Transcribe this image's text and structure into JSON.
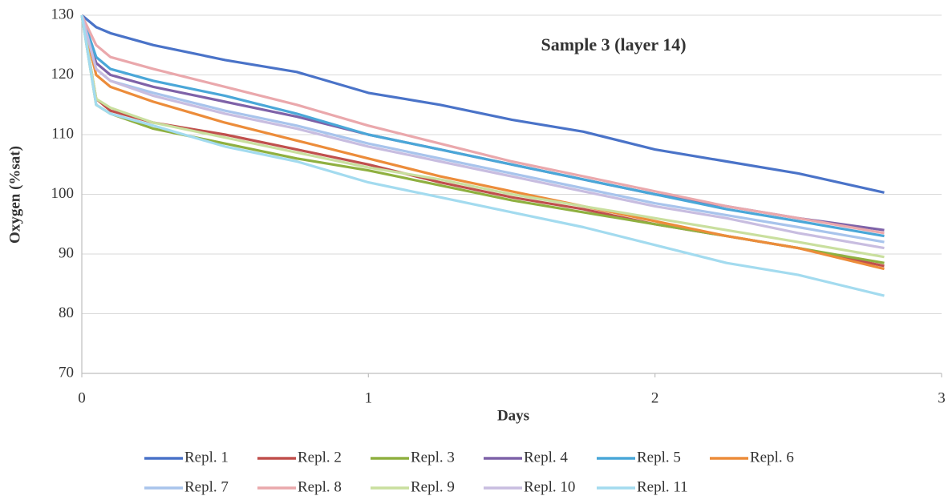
{
  "chart_data": {
    "type": "line",
    "title": "Sample 3 (layer 14)",
    "x_label": "Days",
    "y_label": "Oxygen (%sat)",
    "x": [
      0,
      0.05,
      0.1,
      0.25,
      0.5,
      0.75,
      1,
      1.25,
      1.5,
      1.75,
      2,
      2.25,
      2.5,
      2.8
    ],
    "xlim": [
      0,
      3
    ],
    "xticks": [
      0,
      1,
      2,
      3
    ],
    "ylim": [
      70,
      130
    ],
    "yticks": [
      70,
      80,
      90,
      100,
      110,
      120,
      130
    ],
    "grid": true,
    "legend": "bottom",
    "series": [
      {
        "name": "Repl. 1",
        "color": "#4a73c8",
        "values": [
          130,
          128,
          127,
          125,
          122.5,
          120.5,
          117,
          115,
          112.5,
          110.5,
          107.5,
          105.5,
          103.5,
          100.3
        ]
      },
      {
        "name": "Repl. 2",
        "color": "#c0504d",
        "values": [
          130,
          116,
          114,
          112,
          110,
          107.5,
          105,
          102,
          99.5,
          97.5,
          95,
          93,
          91,
          88
        ]
      },
      {
        "name": "Repl. 3",
        "color": "#8fb040",
        "values": [
          130,
          115,
          113.5,
          111,
          108.5,
          106,
          104,
          101.5,
          99,
          97,
          95,
          93,
          91,
          88.5
        ]
      },
      {
        "name": "Repl. 4",
        "color": "#7e62a8",
        "values": [
          130,
          122,
          120,
          118,
          115.5,
          113,
          110,
          107.5,
          105,
          102.5,
          100,
          98,
          96,
          94
        ]
      },
      {
        "name": "Repl. 5",
        "color": "#4aa7d8",
        "values": [
          130,
          123,
          121,
          119,
          116.5,
          113.5,
          110,
          107.5,
          105,
          102.5,
          100,
          97.5,
          95.5,
          93
        ]
      },
      {
        "name": "Repl. 6",
        "color": "#ec8c3a",
        "values": [
          130,
          120,
          118,
          115.5,
          112,
          109,
          106,
          103,
          100.5,
          98,
          95.5,
          93,
          91,
          87.5
        ]
      },
      {
        "name": "Repl. 7",
        "color": "#a8c4ec",
        "values": [
          130,
          121,
          119,
          117,
          114,
          111.5,
          108.5,
          106,
          103.5,
          101,
          98.5,
          96.5,
          94.5,
          92
        ]
      },
      {
        "name": "Repl. 8",
        "color": "#eaa8ac",
        "values": [
          130,
          125,
          123,
          121,
          118,
          115,
          111.5,
          108.5,
          105.5,
          103,
          100.5,
          98,
          96,
          93.5
        ]
      },
      {
        "name": "Repl. 9",
        "color": "#c9df9e",
        "values": [
          130,
          116,
          114.5,
          112,
          109.5,
          107,
          104.5,
          102.5,
          100,
          98,
          96,
          94,
          92,
          89.5
        ]
      },
      {
        "name": "Repl. 10",
        "color": "#c8bde0",
        "values": [
          130,
          121,
          119,
          116.5,
          113.5,
          111,
          108,
          105.5,
          103,
          100.5,
          98,
          96,
          93.5,
          91
        ]
      },
      {
        "name": "Repl. 11",
        "color": "#a3dbef",
        "values": [
          130,
          115,
          113.5,
          111.5,
          108,
          105.5,
          102,
          99.5,
          97,
          94.5,
          91.5,
          88.5,
          86.5,
          83
        ]
      }
    ]
  }
}
